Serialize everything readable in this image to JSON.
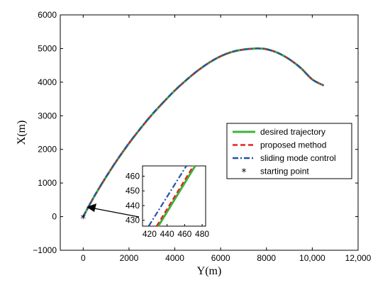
{
  "chart_data": {
    "type": "line",
    "xlabel": "Y(m)",
    "ylabel": "X(m)",
    "xlim": [
      -1000,
      12000
    ],
    "ylim": [
      -1000,
      6000
    ],
    "xticks": [
      0,
      2000,
      4000,
      6000,
      8000,
      10000,
      12000
    ],
    "xtick_labels": [
      "0",
      "2000",
      "4000",
      "6000",
      "8000",
      "10,000",
      "12,000"
    ],
    "yticks": [
      -1000,
      0,
      1000,
      2000,
      3000,
      4000,
      5000,
      6000
    ],
    "ytick_labels": [
      "−1000",
      "0",
      "1000",
      "2000",
      "3000",
      "4000",
      "5000",
      "6000"
    ],
    "grid": false,
    "legend_position": "center-right",
    "series": [
      {
        "name": "desired trajectory",
        "color": "#3cb43c",
        "style": "solid",
        "x": [
          0,
          500,
          1000,
          1500,
          2000,
          2500,
          3000,
          3500,
          4000,
          4500,
          5000,
          5500,
          6000,
          6500,
          7000,
          7500,
          7700,
          8000,
          8500,
          9000,
          9500,
          10000,
          10500
        ],
        "y": [
          0,
          620,
          1180,
          1700,
          2180,
          2620,
          3030,
          3400,
          3750,
          4060,
          4340,
          4580,
          4770,
          4900,
          4970,
          5000,
          5000,
          4980,
          4870,
          4680,
          4420,
          4080,
          3900
        ]
      },
      {
        "name": "proposed method",
        "color": "#e8231f",
        "style": "dashed",
        "x": [
          0,
          500,
          1000,
          1500,
          2000,
          2500,
          3000,
          3500,
          4000,
          4500,
          5000,
          5500,
          6000,
          6500,
          7000,
          7500,
          7700,
          8000,
          8500,
          9000,
          9500,
          10000,
          10500
        ],
        "y": [
          0,
          620,
          1180,
          1700,
          2180,
          2620,
          3030,
          3400,
          3750,
          4060,
          4340,
          4580,
          4770,
          4900,
          4970,
          5000,
          5000,
          4980,
          4870,
          4680,
          4420,
          4080,
          3900
        ]
      },
      {
        "name": "sliding mode control",
        "color": "#2a4fa8",
        "style": "dashdot",
        "x": [
          0,
          500,
          1000,
          1500,
          2000,
          2500,
          3000,
          3500,
          4000,
          4500,
          5000,
          5500,
          6000,
          6500,
          7000,
          7500,
          7700,
          8000,
          8500,
          9000,
          9500,
          10000,
          10500
        ],
        "y": [
          0,
          630,
          1190,
          1710,
          2190,
          2630,
          3040,
          3405,
          3755,
          4065,
          4345,
          4585,
          4772,
          4902,
          4971,
          5000,
          5000,
          4980,
          4870,
          4680,
          4420,
          4080,
          3900
        ]
      }
    ],
    "starting_point": {
      "name": "starting point",
      "x": 0,
      "y": 0,
      "marker": "*"
    },
    "inset": {
      "xlim": [
        412,
        484
      ],
      "ylim": [
        426,
        467
      ],
      "xticks": [
        420,
        440,
        460,
        480
      ],
      "yticks": [
        430,
        440,
        450,
        460
      ],
      "series": [
        {
          "name": "desired trajectory",
          "x": [
            430,
            472
          ],
          "y": [
            426,
            467
          ]
        },
        {
          "name": "proposed method",
          "x": [
            428,
            470
          ],
          "y": [
            426,
            467
          ]
        },
        {
          "name": "sliding mode control",
          "x": [
            419,
            462
          ],
          "y": [
            426,
            467
          ]
        }
      ]
    }
  }
}
